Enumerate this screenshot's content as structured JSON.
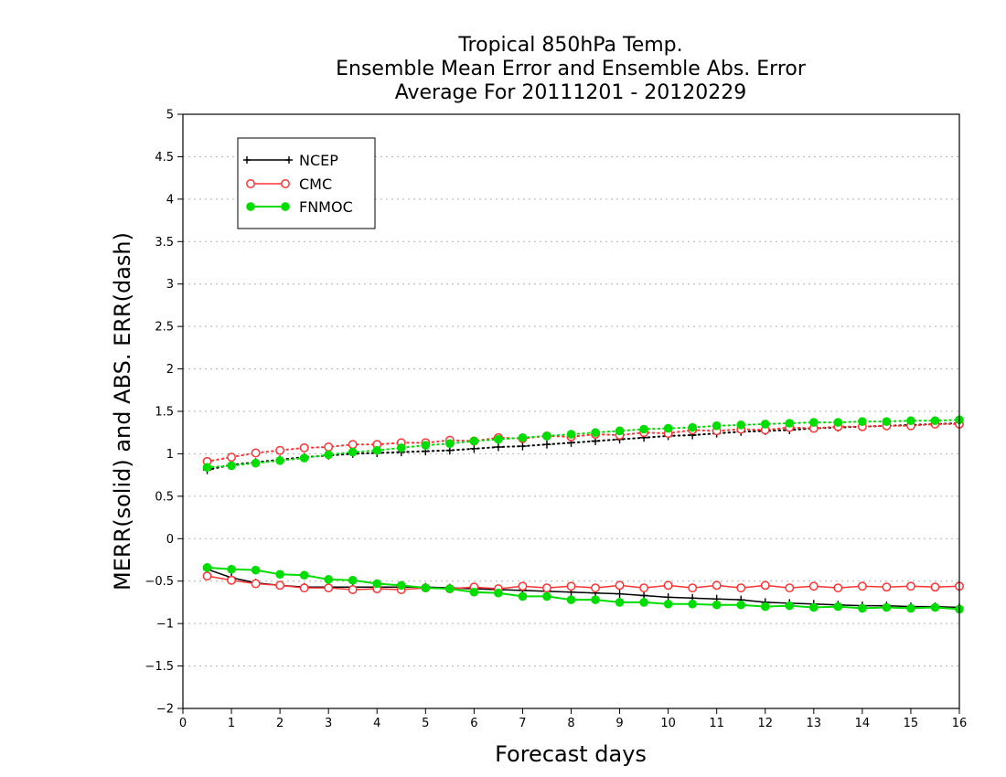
{
  "chart_data": {
    "type": "line",
    "title_lines": [
      "Tropical 850hPa Temp.",
      "Ensemble Mean Error and Ensemble Abs. Error",
      "Average For 20111201 - 20120229"
    ],
    "xlabel": "Forecast days",
    "ylabel": "MERR(solid) and ABS. ERR(dash)",
    "xlim": [
      0,
      16
    ],
    "ylim": [
      -2,
      5
    ],
    "x_ticks": [
      "0",
      "1",
      "2",
      "3",
      "4",
      "5",
      "6",
      "7",
      "8",
      "9",
      "10",
      "11",
      "12",
      "13",
      "14",
      "15",
      "16"
    ],
    "y_ticks": [
      "−2",
      "−1.5",
      "−1",
      "−0.5",
      "0",
      "0.5",
      "1",
      "1.5",
      "2",
      "2.5",
      "3",
      "3.5",
      "4",
      "4.5",
      "5"
    ],
    "grid": "horizontal dotted",
    "legend_placement": "top-left",
    "x": [
      0.5,
      1,
      1.5,
      2,
      2.5,
      3,
      3.5,
      4,
      4.5,
      5,
      5.5,
      6,
      6.5,
      7,
      7.5,
      8,
      8.5,
      9,
      9.5,
      10,
      10.5,
      11,
      11.5,
      12,
      12.5,
      13,
      13.5,
      14,
      14.5,
      15,
      15.5,
      16
    ],
    "series": [
      {
        "name": "NCEP",
        "color": "#000000",
        "marker": "plus",
        "merr": [
          -0.36,
          -0.46,
          -0.52,
          -0.55,
          -0.57,
          -0.57,
          -0.57,
          -0.57,
          -0.57,
          -0.57,
          -0.58,
          -0.59,
          -0.6,
          -0.61,
          -0.62,
          -0.63,
          -0.64,
          -0.65,
          -0.67,
          -0.69,
          -0.7,
          -0.71,
          -0.72,
          -0.75,
          -0.76,
          -0.77,
          -0.78,
          -0.79,
          -0.79,
          -0.8,
          -0.8,
          -0.81
        ],
        "abs_err": [
          0.81,
          0.87,
          0.9,
          0.93,
          0.96,
          0.98,
          1.0,
          1.01,
          1.02,
          1.03,
          1.04,
          1.06,
          1.08,
          1.09,
          1.11,
          1.13,
          1.15,
          1.17,
          1.19,
          1.21,
          1.22,
          1.24,
          1.26,
          1.27,
          1.28,
          1.3,
          1.31,
          1.32,
          1.33,
          1.34,
          1.35,
          1.36
        ]
      },
      {
        "name": "CMC",
        "color": "#ff3333",
        "marker": "open-circle",
        "merr": [
          -0.44,
          -0.49,
          -0.53,
          -0.55,
          -0.58,
          -0.58,
          -0.6,
          -0.59,
          -0.6,
          -0.58,
          -0.59,
          -0.57,
          -0.59,
          -0.56,
          -0.58,
          -0.56,
          -0.58,
          -0.55,
          -0.58,
          -0.55,
          -0.58,
          -0.55,
          -0.58,
          -0.55,
          -0.58,
          -0.56,
          -0.58,
          -0.56,
          -0.57,
          -0.56,
          -0.57,
          -0.56
        ],
        "abs_err": [
          0.91,
          0.96,
          1.01,
          1.04,
          1.07,
          1.08,
          1.11,
          1.11,
          1.13,
          1.13,
          1.16,
          1.15,
          1.19,
          1.18,
          1.21,
          1.2,
          1.23,
          1.22,
          1.25,
          1.24,
          1.28,
          1.27,
          1.29,
          1.28,
          1.31,
          1.3,
          1.32,
          1.32,
          1.33,
          1.33,
          1.35,
          1.35
        ]
      },
      {
        "name": "FNMOC",
        "color": "#00dd00",
        "marker": "filled-circle",
        "merr": [
          -0.34,
          -0.36,
          -0.37,
          -0.42,
          -0.43,
          -0.48,
          -0.49,
          -0.53,
          -0.55,
          -0.58,
          -0.59,
          -0.63,
          -0.64,
          -0.68,
          -0.68,
          -0.72,
          -0.72,
          -0.75,
          -0.75,
          -0.77,
          -0.77,
          -0.78,
          -0.78,
          -0.8,
          -0.79,
          -0.81,
          -0.8,
          -0.82,
          -0.81,
          -0.82,
          -0.81,
          -0.83
        ],
        "abs_err": [
          0.84,
          0.86,
          0.89,
          0.92,
          0.95,
          0.99,
          1.02,
          1.04,
          1.07,
          1.1,
          1.12,
          1.15,
          1.17,
          1.19,
          1.21,
          1.23,
          1.25,
          1.27,
          1.29,
          1.3,
          1.31,
          1.33,
          1.34,
          1.35,
          1.36,
          1.37,
          1.37,
          1.38,
          1.38,
          1.39,
          1.39,
          1.4
        ]
      }
    ]
  }
}
